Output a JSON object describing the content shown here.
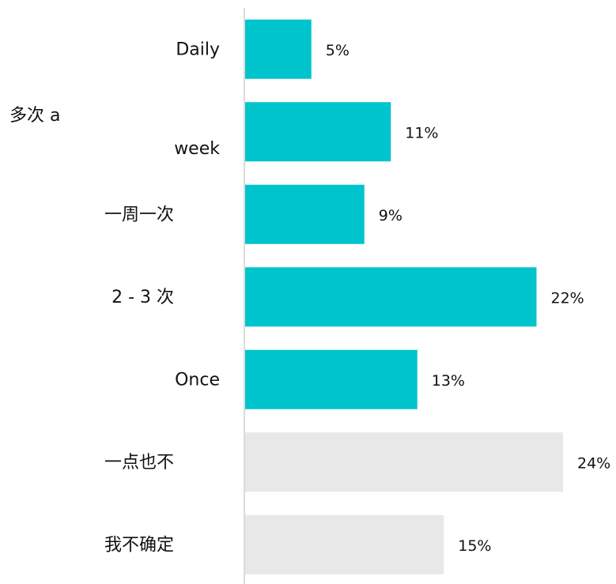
{
  "chart_data": {
    "type": "barh",
    "categories": [
      "Daily",
      "多次 a week",
      "一周一次",
      "2 - 3 次",
      "Once",
      "一点也不",
      "我不确定"
    ],
    "values": [
      5,
      11,
      9,
      22,
      13,
      24,
      15
    ],
    "value_labels": [
      "5%",
      "11%",
      "9%",
      "22%",
      "13%",
      "24%",
      "15%"
    ],
    "colors": [
      "#00c4cc",
      "#00c4cc",
      "#00c4cc",
      "#00c4cc",
      "#00c4cc",
      "#e8e8e8",
      "#e8e8e8"
    ]
  }
}
